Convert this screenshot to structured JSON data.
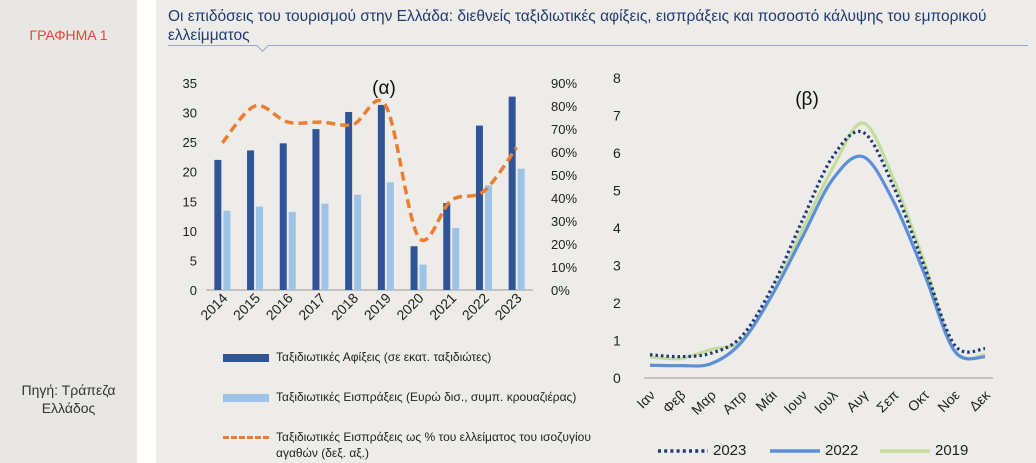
{
  "sidebar": {
    "figure_label": "ΓΡΑΦΗΜΑ 1",
    "source": "Πηγή: Τράπεζα\nΕλλάδος"
  },
  "header": {
    "title": "Οι επιδόσεις του τουρισμού στην Ελλάδα: διεθνείς ταξιδιωτικές αφίξεις, εισπράξεις και ποσοστό κάλυψης του εμπορικού ελλείμματος"
  },
  "colors": {
    "arrivals": "#2f5597",
    "receipts": "#9dc3e6",
    "coverage": "#ee7d30",
    "y2023": "#1f3a78",
    "y2022": "#5b8fd8",
    "y2019": "#c4dc9c"
  },
  "chart_data": [
    {
      "type": "bar",
      "panel_label": "(α)",
      "categories": [
        "2014",
        "2015",
        "2016",
        "2017",
        "2018",
        "2019",
        "2020",
        "2021",
        "2022",
        "2023"
      ],
      "y_left": {
        "ticks": [
          "0",
          "5",
          "10",
          "15",
          "20",
          "25",
          "30",
          "35"
        ],
        "range": [
          0,
          35
        ]
      },
      "y_right": {
        "ticks": [
          "0%",
          "10%",
          "20%",
          "30%",
          "40%",
          "50%",
          "60%",
          "70%",
          "80%",
          "90%"
        ],
        "range": [
          0,
          90
        ]
      },
      "series": [
        {
          "name": "Ταξιδιωτικές Αφίξεις (σε εκατ. ταξιδιώτες)",
          "kind": "bar",
          "axis": "left",
          "values": [
            22.0,
            23.6,
            24.8,
            27.2,
            30.1,
            31.3,
            7.4,
            14.7,
            27.8,
            32.7
          ]
        },
        {
          "name": "Ταξιδιωτικές Εισπράξεις (Ευρώ δισ., συμπ. κρουαζιέρας)",
          "kind": "bar",
          "axis": "left",
          "values": [
            13.4,
            14.1,
            13.2,
            14.6,
            16.1,
            18.2,
            4.3,
            10.5,
            17.7,
            20.5
          ]
        },
        {
          "name": "Ταξιδιωτικές Εισπράξεις ως % του ελλείματος του ισοζυγίου αγαθών (δεξ. αξ.)",
          "kind": "line",
          "axis": "right",
          "values": [
            64,
            80,
            73,
            73,
            72,
            80,
            23,
            39,
            43,
            62
          ]
        }
      ]
    },
    {
      "type": "line",
      "panel_label": "(β)",
      "categories": [
        "Ιαν",
        "Φεβ",
        "Μαρ",
        "Απρ",
        "Μάι",
        "Ιουν",
        "Ιουλ",
        "Αυγ",
        "Σεπ",
        "Οκτ",
        "Νοε",
        "Δεκ"
      ],
      "y": {
        "ticks": [
          "0",
          "1",
          "2",
          "3",
          "4",
          "5",
          "6",
          "7",
          "8"
        ],
        "range": [
          0,
          8
        ]
      },
      "series": [
        {
          "name": "2023",
          "values": [
            0.62,
            0.57,
            0.66,
            1.1,
            2.4,
            4.2,
            5.9,
            6.55,
            5.1,
            3.0,
            0.88,
            0.78
          ]
        },
        {
          "name": "2022",
          "values": [
            0.34,
            0.33,
            0.38,
            0.95,
            2.2,
            3.75,
            5.3,
            5.9,
            4.7,
            2.8,
            0.72,
            0.56
          ]
        },
        {
          "name": "2019",
          "values": [
            0.56,
            0.52,
            0.76,
            1.0,
            2.2,
            3.95,
            5.6,
            6.8,
            5.3,
            3.1,
            0.72,
            0.62
          ]
        }
      ]
    }
  ]
}
